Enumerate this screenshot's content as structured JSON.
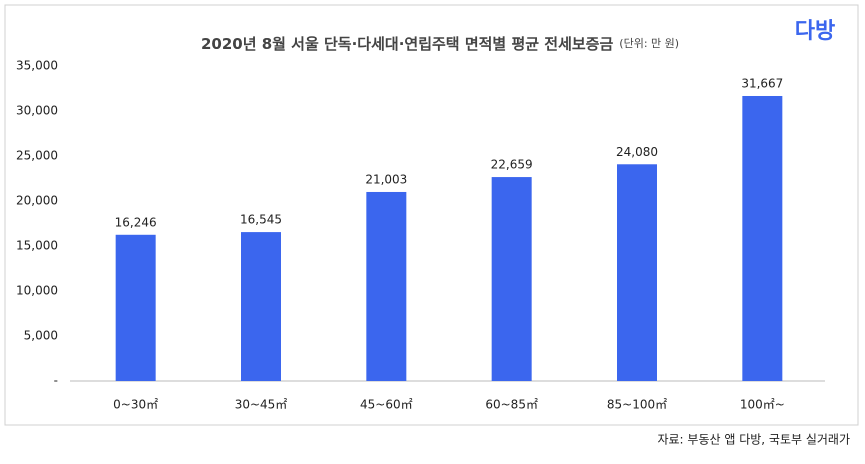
{
  "chart_data": {
    "type": "bar",
    "title": "2020년 8월 서울 단독·다세대·연립주택 면적별 평균 전세보증금",
    "subtitle": "(단위: 만 원)",
    "logo": "다방",
    "source": "자료: 부동산 앱 다방, 국토부 실거래가",
    "categories": [
      "0~30㎡",
      "30~45㎡",
      "45~60㎡",
      "60~85㎡",
      "85~100㎡",
      "100㎡~"
    ],
    "values": [
      16246,
      16545,
      21003,
      22659,
      24080,
      31667
    ],
    "value_labels": [
      "16,246",
      "16,545",
      "21,003",
      "22,659",
      "24,080",
      "31,667"
    ],
    "color": "#3b66ee",
    "ylim": [
      0,
      35000
    ],
    "yticks": [
      {
        "value": 0,
        "label": "-"
      },
      {
        "value": 5000,
        "label": "5,000"
      },
      {
        "value": 10000,
        "label": "10,000"
      },
      {
        "value": 15000,
        "label": "15,000"
      },
      {
        "value": 20000,
        "label": "20,000"
      },
      {
        "value": 25000,
        "label": "25,000"
      },
      {
        "value": 30000,
        "label": "30,000"
      },
      {
        "value": 35000,
        "label": "35,000"
      }
    ],
    "grid": false
  }
}
